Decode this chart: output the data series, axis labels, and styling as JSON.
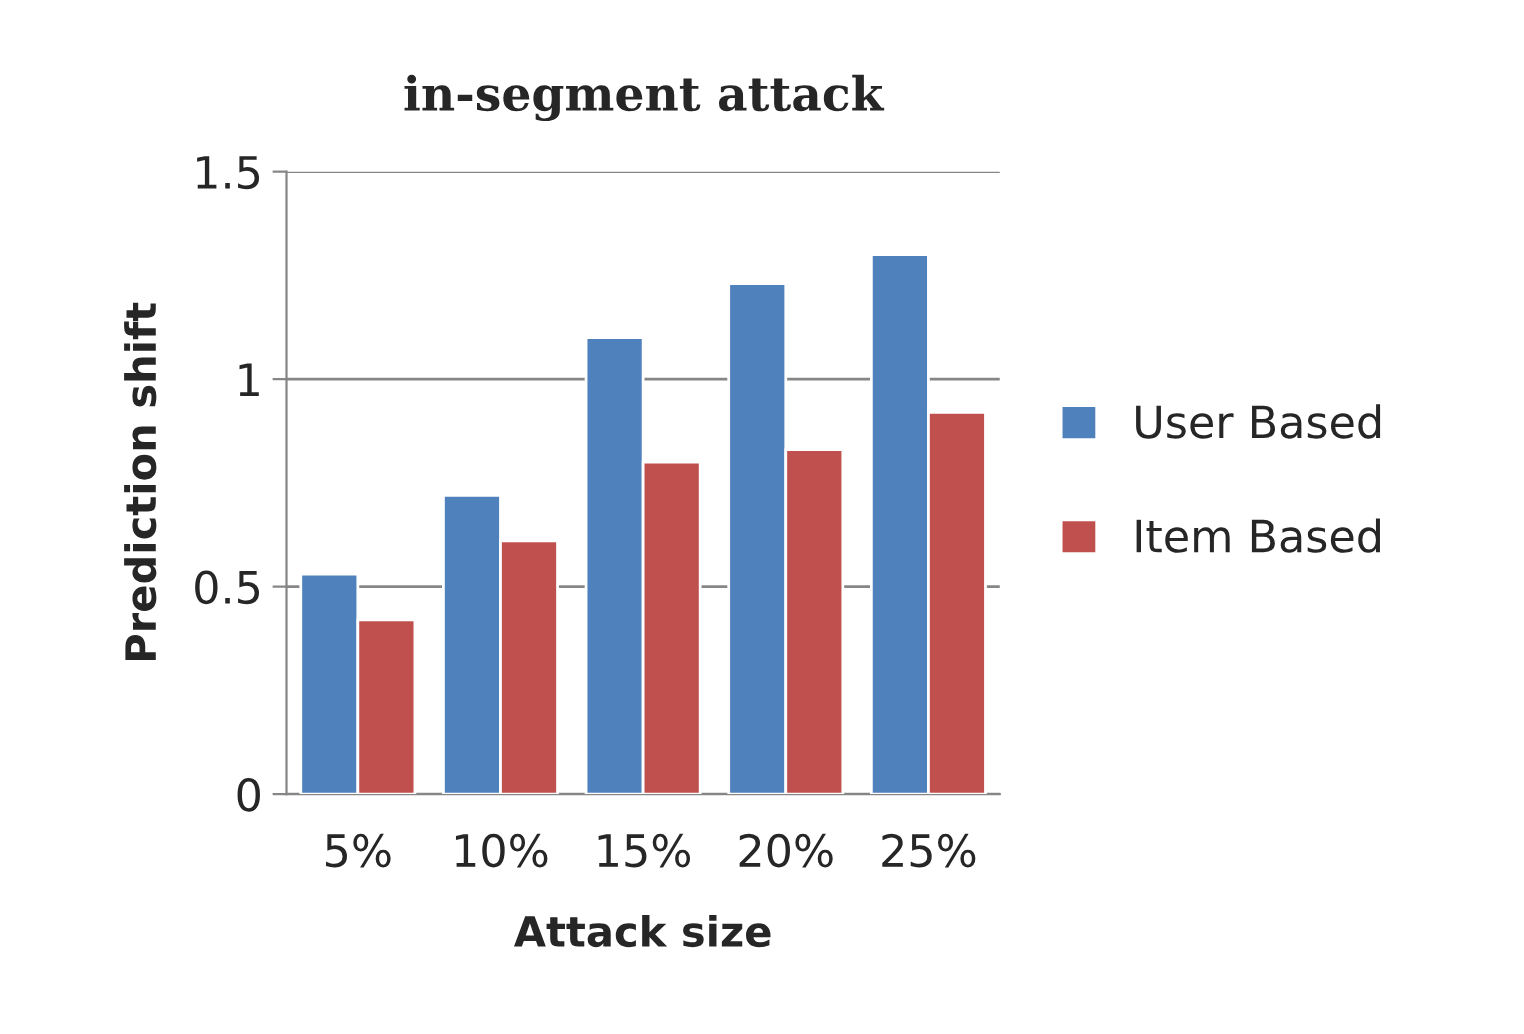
{
  "chart_data": {
    "type": "bar",
    "title": "in-segment attack",
    "xlabel": "Attack size",
    "ylabel": "Prediction shift",
    "categories": [
      "5%",
      "10%",
      "15%",
      "20%",
      "25%"
    ],
    "series": [
      {
        "name": "User Based",
        "color": "#4f81bd",
        "values": [
          0.53,
          0.72,
          1.1,
          1.23,
          1.3
        ]
      },
      {
        "name": "Item Based",
        "color": "#c0504d",
        "values": [
          0.42,
          0.61,
          0.8,
          0.83,
          0.92
        ]
      }
    ],
    "ylim": [
      0,
      1.5
    ],
    "yticks": [
      0,
      {
        "value": 0.5,
        "label": "0.5"
      },
      1,
      {
        "value": 1.5,
        "label": "1.5"
      }
    ],
    "grid": "y",
    "legend": "right"
  }
}
